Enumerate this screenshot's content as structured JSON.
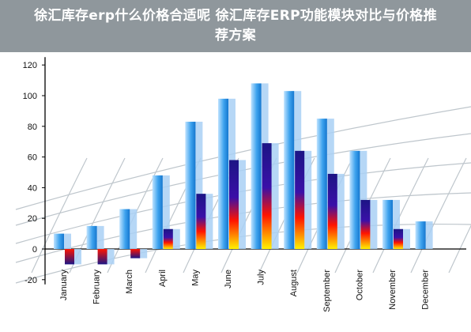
{
  "page": {
    "title": "徐汇库存erp什么价格合适呢 徐汇库存ERP功能模块对比与价格推荐方案"
  },
  "chart_data": {
    "type": "bar",
    "title": "",
    "xlabel": "",
    "ylabel": "",
    "ylim": [
      -20,
      120
    ],
    "yticks": [
      -20,
      0,
      20,
      40,
      60,
      80,
      100,
      120
    ],
    "grid": false,
    "categories": [
      "January",
      "February",
      "March",
      "April",
      "May",
      "June",
      "July",
      "August",
      "September",
      "October",
      "November",
      "December"
    ],
    "series": [
      {
        "values": [
          10,
          15,
          26,
          48,
          83,
          98,
          108,
          103,
          85,
          64,
          32,
          18
        ]
      },
      {
        "values": [
          -10,
          -10,
          -6,
          13,
          36,
          58,
          69,
          64,
          49,
          32,
          13,
          null
        ]
      }
    ],
    "colors": {
      "series1_light": "#bfe3ff",
      "series1_dark": "#1577cf",
      "series2_top": "#1c1585",
      "series2_mid": "#ff1400",
      "series2_bottom": "#fff200",
      "shadow": "#a9d0f5",
      "axis": "#000000",
      "perspective_grid": "#a9b3bb"
    }
  }
}
